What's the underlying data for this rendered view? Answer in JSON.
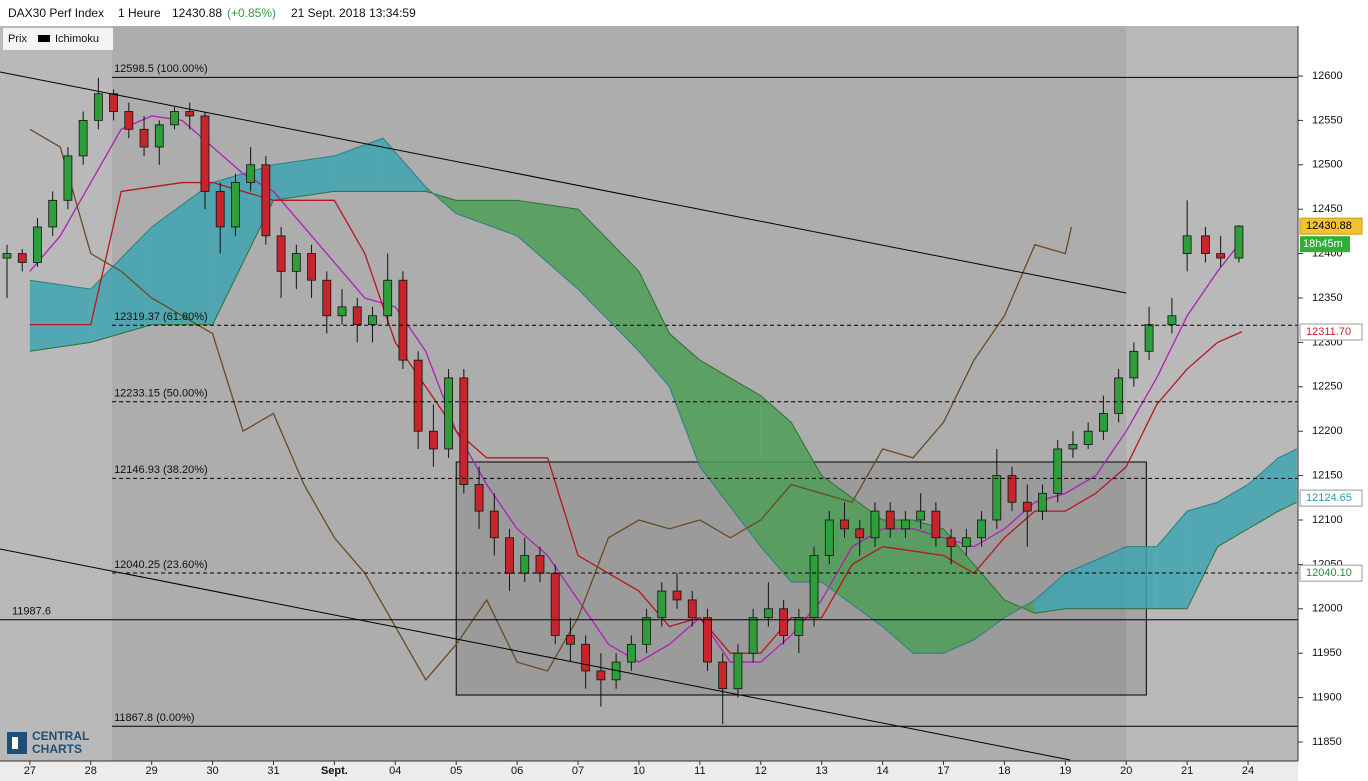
{
  "chart_data": {
    "type": "candlestick",
    "header": {
      "title": "DAX30 Perf Index",
      "period": "1 Heure",
      "price": "12430.88",
      "change": "(+0.85%)",
      "date": "21 Sept. 2018 13:34:59"
    },
    "legend": [
      "Prix",
      "Ichimoku"
    ],
    "logo": [
      "CENTRAL",
      "CHARTS"
    ],
    "xlim": [
      -0.49,
      20.82
    ],
    "ylim": [
      11828.6,
      12656.3
    ],
    "xticks": [
      {
        "value": 0,
        "label": "27"
      },
      {
        "value": 1,
        "label": "28"
      },
      {
        "value": 2,
        "label": "29"
      },
      {
        "value": 3,
        "label": "30"
      },
      {
        "value": 4,
        "label": "31"
      },
      {
        "value": 5,
        "label": "Sept."
      },
      {
        "value": 6,
        "label": "04"
      },
      {
        "value": 7,
        "label": "05"
      },
      {
        "value": 8,
        "label": "06"
      },
      {
        "value": 9,
        "label": "07"
      },
      {
        "value": 10,
        "label": "10"
      },
      {
        "value": 11,
        "label": "11"
      },
      {
        "value": 12,
        "label": "12"
      },
      {
        "value": 13,
        "label": "13"
      },
      {
        "value": 14,
        "label": "14"
      },
      {
        "value": 15,
        "label": "17"
      },
      {
        "value": 16,
        "label": "18"
      },
      {
        "value": 17,
        "label": "19"
      },
      {
        "value": 18,
        "label": "20"
      },
      {
        "value": 19,
        "label": "21"
      },
      {
        "value": 20,
        "label": "24"
      }
    ],
    "yticks": [
      11850,
      11900,
      11950,
      12000,
      12050,
      12100,
      12150,
      12200,
      12250,
      12300,
      12350,
      12400,
      12450,
      12500,
      12550,
      12600
    ],
    "up_color": "#2e9e3a",
    "down_color": "#c8242c",
    "candles": [
      {
        "x": -0.375,
        "o": 12395,
        "h": 12410,
        "l": 12350,
        "c": 12400
      },
      {
        "x": -0.125,
        "o": 12400,
        "h": 12405,
        "l": 12380,
        "c": 12390
      },
      {
        "x": 0.125,
        "o": 12390,
        "h": 12440,
        "l": 12385,
        "c": 12430
      },
      {
        "x": 0.375,
        "o": 12430,
        "h": 12470,
        "l": 12420,
        "c": 12460
      },
      {
        "x": 0.625,
        "o": 12460,
        "h": 12520,
        "l": 12450,
        "c": 12510
      },
      {
        "x": 0.875,
        "o": 12510,
        "h": 12560,
        "l": 12500,
        "c": 12550
      },
      {
        "x": 1.125,
        "o": 12550,
        "h": 12598,
        "l": 12540,
        "c": 12580
      },
      {
        "x": 1.375,
        "o": 12580,
        "h": 12585,
        "l": 12550,
        "c": 12560
      },
      {
        "x": 1.625,
        "o": 12560,
        "h": 12570,
        "l": 12530,
        "c": 12540
      },
      {
        "x": 1.875,
        "o": 12540,
        "h": 12555,
        "l": 12510,
        "c": 12520
      },
      {
        "x": 2.125,
        "o": 12520,
        "h": 12550,
        "l": 12500,
        "c": 12545
      },
      {
        "x": 2.375,
        "o": 12545,
        "h": 12565,
        "l": 12540,
        "c": 12560
      },
      {
        "x": 2.625,
        "o": 12560,
        "h": 12570,
        "l": 12540,
        "c": 12555
      },
      {
        "x": 2.875,
        "o": 12555,
        "h": 12560,
        "l": 12450,
        "c": 12470
      },
      {
        "x": 3.125,
        "o": 12470,
        "h": 12480,
        "l": 12400,
        "c": 12430
      },
      {
        "x": 3.375,
        "o": 12430,
        "h": 12490,
        "l": 12420,
        "c": 12480
      },
      {
        "x": 3.625,
        "o": 12480,
        "h": 12520,
        "l": 12470,
        "c": 12500
      },
      {
        "x": 3.875,
        "o": 12500,
        "h": 12510,
        "l": 12410,
        "c": 12420
      },
      {
        "x": 4.125,
        "o": 12420,
        "h": 12430,
        "l": 12350,
        "c": 12380
      },
      {
        "x": 4.375,
        "o": 12380,
        "h": 12410,
        "l": 12360,
        "c": 12400
      },
      {
        "x": 4.625,
        "o": 12400,
        "h": 12410,
        "l": 12350,
        "c": 12370
      },
      {
        "x": 4.875,
        "o": 12370,
        "h": 12380,
        "l": 12310,
        "c": 12330
      },
      {
        "x": 5.125,
        "o": 12330,
        "h": 12360,
        "l": 12320,
        "c": 12340
      },
      {
        "x": 5.375,
        "o": 12340,
        "h": 12350,
        "l": 12300,
        "c": 12320
      },
      {
        "x": 5.625,
        "o": 12320,
        "h": 12340,
        "l": 12300,
        "c": 12330
      },
      {
        "x": 5.875,
        "o": 12330,
        "h": 12400,
        "l": 12320,
        "c": 12370
      },
      {
        "x": 6.125,
        "o": 12370,
        "h": 12380,
        "l": 12270,
        "c": 12280
      },
      {
        "x": 6.375,
        "o": 12280,
        "h": 12290,
        "l": 12180,
        "c": 12200
      },
      {
        "x": 6.625,
        "o": 12200,
        "h": 12230,
        "l": 12160,
        "c": 12180
      },
      {
        "x": 6.875,
        "o": 12180,
        "h": 12270,
        "l": 12170,
        "c": 12260
      },
      {
        "x": 7.125,
        "o": 12260,
        "h": 12270,
        "l": 12130,
        "c": 12140
      },
      {
        "x": 7.375,
        "o": 12140,
        "h": 12160,
        "l": 12090,
        "c": 12110
      },
      {
        "x": 7.625,
        "o": 12110,
        "h": 12130,
        "l": 12060,
        "c": 12080
      },
      {
        "x": 7.875,
        "o": 12080,
        "h": 12090,
        "l": 12020,
        "c": 12040
      },
      {
        "x": 8.125,
        "o": 12040,
        "h": 12080,
        "l": 12030,
        "c": 12060
      },
      {
        "x": 8.375,
        "o": 12060,
        "h": 12070,
        "l": 12030,
        "c": 12040
      },
      {
        "x": 8.625,
        "o": 12040,
        "h": 12050,
        "l": 11960,
        "c": 11970
      },
      {
        "x": 8.875,
        "o": 11970,
        "h": 11990,
        "l": 11940,
        "c": 11960
      },
      {
        "x": 9.125,
        "o": 11960,
        "h": 11970,
        "l": 11910,
        "c": 11930
      },
      {
        "x": 9.375,
        "o": 11930,
        "h": 11950,
        "l": 11890,
        "c": 11920
      },
      {
        "x": 9.625,
        "o": 11920,
        "h": 11950,
        "l": 11910,
        "c": 11940
      },
      {
        "x": 9.875,
        "o": 11940,
        "h": 11970,
        "l": 11930,
        "c": 11960
      },
      {
        "x": 10.125,
        "o": 11960,
        "h": 12000,
        "l": 11950,
        "c": 11990
      },
      {
        "x": 10.375,
        "o": 11990,
        "h": 12030,
        "l": 11980,
        "c": 12020
      },
      {
        "x": 10.625,
        "o": 12020,
        "h": 12040,
        "l": 12000,
        "c": 12010
      },
      {
        "x": 10.875,
        "o": 12010,
        "h": 12020,
        "l": 11980,
        "c": 11990
      },
      {
        "x": 11.125,
        "o": 11990,
        "h": 12000,
        "l": 11930,
        "c": 11940
      },
      {
        "x": 11.375,
        "o": 11940,
        "h": 11950,
        "l": 11870,
        "c": 11910
      },
      {
        "x": 11.625,
        "o": 11910,
        "h": 11960,
        "l": 11900,
        "c": 11950
      },
      {
        "x": 11.875,
        "o": 11950,
        "h": 12000,
        "l": 11940,
        "c": 11990
      },
      {
        "x": 12.125,
        "o": 11990,
        "h": 12030,
        "l": 11980,
        "c": 12000
      },
      {
        "x": 12.375,
        "o": 12000,
        "h": 12010,
        "l": 11960,
        "c": 11970
      },
      {
        "x": 12.625,
        "o": 11970,
        "h": 12000,
        "l": 11950,
        "c": 11990
      },
      {
        "x": 12.875,
        "o": 11990,
        "h": 12070,
        "l": 11980,
        "c": 12060
      },
      {
        "x": 13.125,
        "o": 12060,
        "h": 12110,
        "l": 12050,
        "c": 12100
      },
      {
        "x": 13.375,
        "o": 12100,
        "h": 12120,
        "l": 12080,
        "c": 12090
      },
      {
        "x": 13.625,
        "o": 12090,
        "h": 12100,
        "l": 12060,
        "c": 12080
      },
      {
        "x": 13.875,
        "o": 12080,
        "h": 12120,
        "l": 12070,
        "c": 12110
      },
      {
        "x": 14.125,
        "o": 12110,
        "h": 12120,
        "l": 12080,
        "c": 12090
      },
      {
        "x": 14.375,
        "o": 12090,
        "h": 12110,
        "l": 12080,
        "c": 12100
      },
      {
        "x": 14.625,
        "o": 12100,
        "h": 12130,
        "l": 12090,
        "c": 12110
      },
      {
        "x": 14.875,
        "o": 12110,
        "h": 12120,
        "l": 12070,
        "c": 12080
      },
      {
        "x": 15.125,
        "o": 12080,
        "h": 12090,
        "l": 12050,
        "c": 12070
      },
      {
        "x": 15.375,
        "o": 12070,
        "h": 12090,
        "l": 12060,
        "c": 12080
      },
      {
        "x": 15.625,
        "o": 12080,
        "h": 12110,
        "l": 12070,
        "c": 12100
      },
      {
        "x": 15.875,
        "o": 12100,
        "h": 12180,
        "l": 12090,
        "c": 12150
      },
      {
        "x": 16.125,
        "o": 12150,
        "h": 12160,
        "l": 12110,
        "c": 12120
      },
      {
        "x": 16.375,
        "o": 12120,
        "h": 12140,
        "l": 12070,
        "c": 12110
      },
      {
        "x": 16.625,
        "o": 12110,
        "h": 12140,
        "l": 12100,
        "c": 12130
      },
      {
        "x": 16.875,
        "o": 12130,
        "h": 12190,
        "l": 12120,
        "c": 12180
      },
      {
        "x": 17.125,
        "o": 12180,
        "h": 12200,
        "l": 12170,
        "c": 12185
      },
      {
        "x": 17.375,
        "o": 12185,
        "h": 12210,
        "l": 12180,
        "c": 12200
      },
      {
        "x": 17.625,
        "o": 12200,
        "h": 12240,
        "l": 12190,
        "c": 12220
      },
      {
        "x": 17.875,
        "o": 12220,
        "h": 12270,
        "l": 12210,
        "c": 12260
      },
      {
        "x": 18.125,
        "o": 12260,
        "h": 12300,
        "l": 12250,
        "c": 12290
      },
      {
        "x": 18.375,
        "o": 12290,
        "h": 12340,
        "l": 12280,
        "c": 12320
      },
      {
        "x": 18.75,
        "o": 12320,
        "h": 12350,
        "l": 12310,
        "c": 12330
      },
      {
        "x": 19.0,
        "o": 12400,
        "h": 12460,
        "l": 12380,
        "c": 12420
      },
      {
        "x": 19.3,
        "o": 12420,
        "h": 12430,
        "l": 12390,
        "c": 12400
      },
      {
        "x": 19.55,
        "o": 12400,
        "h": 12420,
        "l": 12385,
        "c": 12395
      },
      {
        "x": 19.85,
        "o": 12395,
        "h": 12432,
        "l": 12390,
        "c": 12431
      }
    ],
    "lines": [
      {
        "name": "tenkan",
        "color": "#b01fb5",
        "x": [
          0,
          0.5,
          1,
          1.5,
          2,
          2.5,
          3,
          3.5,
          4,
          4.5,
          5,
          5.5,
          6,
          6.5,
          7,
          7.5,
          8,
          8.5,
          9,
          9.5,
          10,
          10.5,
          11,
          11.5,
          12,
          12.5,
          13,
          13.5,
          14,
          14.5,
          15,
          15.5,
          16,
          16.5,
          17,
          17.5,
          18,
          18.5,
          19,
          19.5,
          19.9
        ],
        "values": [
          12380,
          12420,
          12480,
          12540,
          12555,
          12550,
          12520,
          12490,
          12470,
          12430,
          12390,
          12350,
          12340,
          12290,
          12200,
          12140,
          12090,
          12060,
          12010,
          11960,
          11940,
          11960,
          11990,
          11940,
          11940,
          11970,
          12010,
          12070,
          12090,
          12090,
          12080,
          12070,
          12090,
          12120,
          12130,
          12150,
          12200,
          12260,
          12330,
          12380,
          12415
        ]
      },
      {
        "name": "kijun",
        "color": "#b5171c",
        "x": [
          0,
          1,
          1.5,
          2.5,
          3,
          4,
          5,
          5.5,
          6,
          6.5,
          7,
          7.5,
          8,
          8.5,
          9,
          10,
          10.5,
          11,
          11.5,
          12,
          12.5,
          13,
          13.5,
          14,
          15,
          15.5,
          16,
          16.5,
          17,
          17.5,
          18,
          18.5,
          19,
          19.5,
          19.9
        ],
        "values": [
          12320,
          12320,
          12470,
          12480,
          12480,
          12460,
          12460,
          12400,
          12300,
          12250,
          12200,
          12170,
          12170,
          12170,
          12060,
          12020,
          11980,
          11990,
          11950,
          11950,
          11990,
          11990,
          12050,
          12070,
          12060,
          12040,
          12080,
          12110,
          12110,
          12130,
          12160,
          12230,
          12270,
          12300,
          12312
        ]
      },
      {
        "name": "chikou",
        "color": "#6b4a22",
        "x": [
          0,
          0.5,
          1,
          1.5,
          2,
          2.5,
          3,
          3.5,
          4,
          4.5,
          5,
          5.5,
          6,
          6.5,
          7,
          7.5,
          8,
          8.5,
          9,
          9.5,
          10,
          10.5,
          11,
          11.5,
          12,
          12.5,
          13,
          13.5,
          14,
          14.5,
          15,
          15.5,
          16,
          16.5,
          17,
          17.1
        ],
        "values": [
          12540,
          12520,
          12400,
          12380,
          12350,
          12330,
          12310,
          12200,
          12220,
          12140,
          12080,
          12040,
          11980,
          11920,
          11960,
          12010,
          11940,
          11930,
          11990,
          12080,
          12100,
          12090,
          12100,
          12080,
          12100,
          12140,
          12130,
          12120,
          12180,
          12170,
          12210,
          12280,
          12330,
          12410,
          12400,
          12430
        ]
      }
    ],
    "cloud": {
      "up_color": "#4f9e57",
      "down_color": "#3fa5b0",
      "x": [
        0,
        1,
        2,
        3,
        4,
        5,
        5.8,
        6.5,
        7,
        8,
        9,
        10,
        10.5,
        11,
        12,
        12.5,
        13,
        14,
        14.5,
        15,
        15.5,
        16,
        16.5,
        17,
        18,
        18.5,
        19,
        19.5,
        20,
        20.5,
        20.8
      ],
      "spanA": [
        12290,
        12300,
        12320,
        12320,
        12460,
        12470,
        12470,
        12470,
        12460,
        12460,
        12450,
        12380,
        12310,
        12280,
        12240,
        12210,
        12150,
        12100,
        12100,
        12090,
        12050,
        12010,
        11995,
        12000,
        12000,
        12000,
        12000,
        12070,
        12090,
        12110,
        12120
      ],
      "spanB": [
        12370,
        12360,
        12430,
        12480,
        12500,
        12510,
        12530,
        12475,
        12445,
        12420,
        12360,
        12290,
        12250,
        12160,
        12070,
        12030,
        12030,
        11980,
        11950,
        11950,
        11965,
        11990,
        12010,
        12040,
        12070,
        12070,
        12110,
        12120,
        12140,
        12170,
        12180
      ]
    },
    "fib_x": [
      1.35,
      18.0
    ],
    "fib_levels": [
      {
        "value": 12598.5,
        "label": "12598.5 (100.00%)",
        "dashed": false
      },
      {
        "value": 12319.37,
        "label": "12319.37 (61.80%)",
        "dashed": true
      },
      {
        "value": 12233.15,
        "label": "12233.15 (50.00%)",
        "dashed": true
      },
      {
        "value": 12146.93,
        "label": "12146.93 (38.20%)",
        "dashed": true
      },
      {
        "value": 12040.25,
        "label": "12040.25 (23.60%)",
        "dashed": true
      },
      {
        "value": 11867.8,
        "label": "11867.8 (0.00%)",
        "dashed": false
      }
    ],
    "hline": 11987.6,
    "trendlines": [
      {
        "x": [
          -0.49,
          18.0
        ],
        "y": [
          12604.5,
          12355.6
        ]
      },
      {
        "x": [
          -0.49,
          17.08
        ],
        "y": [
          12067.3,
          11829.7
        ]
      }
    ],
    "box": {
      "x": [
        7.0,
        18.33
      ],
      "y": [
        11902.9,
        12165.3
      ]
    },
    "price_tags": [
      {
        "value": 12430.88,
        "bg": "#f2c230",
        "fg": "#000"
      },
      {
        "value": 12311.7,
        "label": "12311.70",
        "bg": "#ffffff",
        "fg": "#c8242c"
      },
      {
        "value": 12124.65,
        "bg": "#ffffff",
        "fg": "#2a9aa8"
      },
      {
        "value": 12040.1,
        "label": "12040.10",
        "bg": "#ffffff",
        "fg": "#2e8b3a"
      }
    ],
    "timer": "18h45m"
  }
}
